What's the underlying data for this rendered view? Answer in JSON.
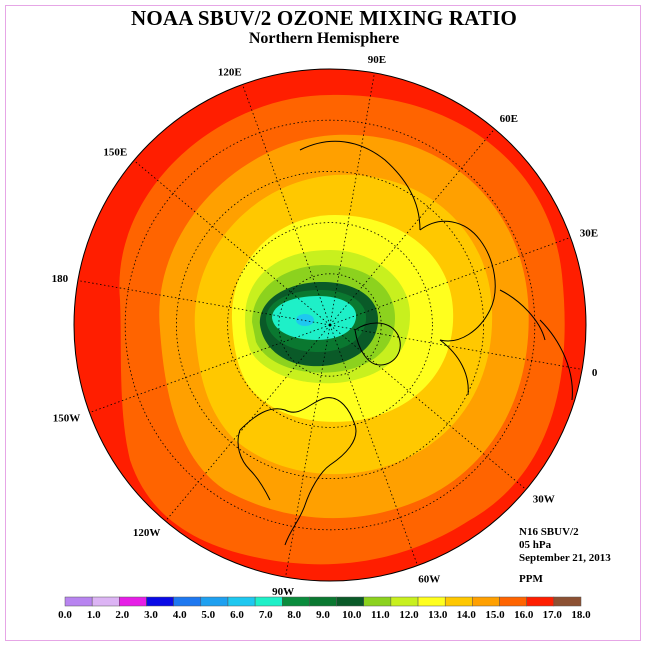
{
  "title": "NOAA SBUV/2 OZONE MIXING RATIO",
  "subtitle": "Northern Hemisphere",
  "info": {
    "instrument": "N16 SBUV/2",
    "level": "05 hPa",
    "date": "September 21, 2013"
  },
  "units": "PPM",
  "longitude_labels": [
    {
      "text": "90E",
      "lon": 90
    },
    {
      "text": "60E",
      "lon": 60
    },
    {
      "text": "30E",
      "lon": 30
    },
    {
      "text": "0",
      "lon": 0
    },
    {
      "text": "30W",
      "lon": -30
    },
    {
      "text": "60W",
      "lon": -60
    },
    {
      "text": "90W",
      "lon": -90
    },
    {
      "text": "120W",
      "lon": -120
    },
    {
      "text": "150W",
      "lon": -150
    },
    {
      "text": "180",
      "lon": 180
    },
    {
      "text": "150E",
      "lon": 150
    },
    {
      "text": "120E",
      "lon": 120
    }
  ],
  "colorbar": {
    "ticks": [
      "0.0",
      "1.0",
      "2.0",
      "3.0",
      "4.0",
      "5.0",
      "6.0",
      "7.0",
      "8.0",
      "9.0",
      "10.0",
      "11.0",
      "12.0",
      "13.0",
      "14.0",
      "15.0",
      "16.0",
      "17.0",
      "18.0"
    ],
    "colors": [
      "#b884f0",
      "#dcb4f4",
      "#e61ee6",
      "#0a0ae6",
      "#1e78f0",
      "#1ea0f0",
      "#1ec8f0",
      "#1ef0c8",
      "#0a8c3c",
      "#0a7830",
      "#0a5a28",
      "#8cd21e",
      "#c8f01e",
      "#ffff1e",
      "#ffc800",
      "#ffa000",
      "#ff6400",
      "#ff1e00",
      "#8c5032"
    ]
  },
  "map": {
    "projection": "north polar stereographic",
    "contour_colors": {
      "c17": "#ff1e00",
      "c16": "#ff6400",
      "c15": "#ffa000",
      "c14": "#ffc800",
      "c13": "#ffff1e",
      "c12": "#c8f01e",
      "c11": "#8cd21e",
      "c10": "#0a5a28",
      "c9": "#0a7830",
      "c8": "#1ef0c8",
      "c7": "#1ec8f0"
    }
  }
}
